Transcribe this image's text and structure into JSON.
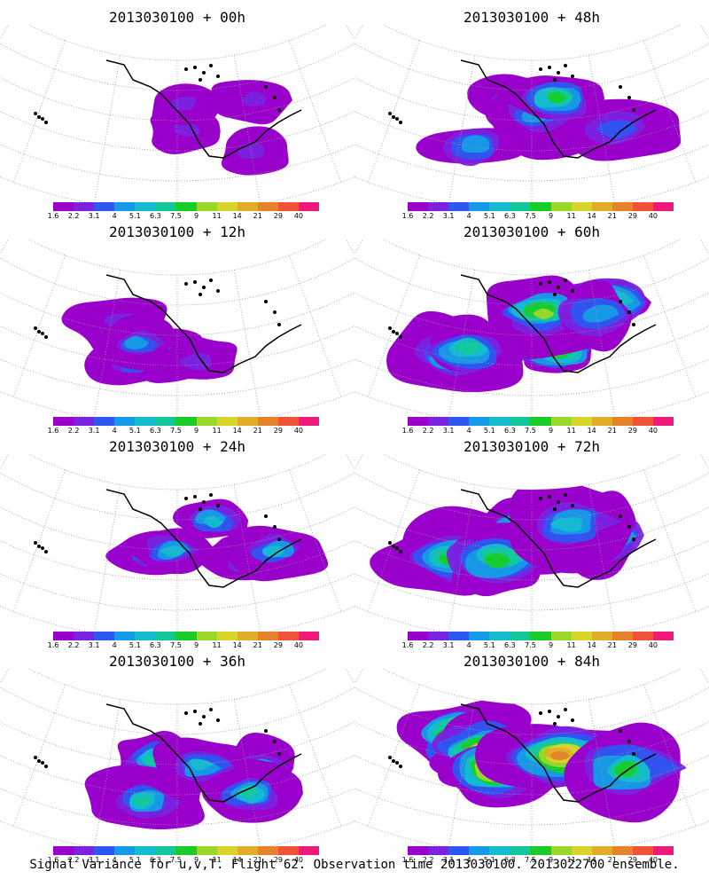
{
  "colors": {
    "levels": [
      "#9a00cc",
      "#7a22e0",
      "#2e56f0",
      "#169ce6",
      "#14bcd0",
      "#12c89a",
      "#18cc2a",
      "#9ad82a",
      "#d8d42a",
      "#e0ac2a",
      "#e6822a",
      "#f0523a",
      "#f0187a"
    ],
    "coast": "#000000",
    "grid": "#999999"
  },
  "legend_labels": [
    "1.6",
    "2.2",
    "3.1",
    "4",
    "5.1",
    "6.3",
    "7.5",
    "9",
    "11",
    "14",
    "21",
    "29",
    "40"
  ],
  "caption": "Signal Variance for u,v,T. Flight 62. Observation time 2013030100. 2013022700 ensemble.",
  "panels": [
    {
      "title": "2013030100 + 00h",
      "lead_hours": 0,
      "intensity": 0.1
    },
    {
      "title": "2013030100 + 48h",
      "lead_hours": 48,
      "intensity": 0.55
    },
    {
      "title": "2013030100 + 12h",
      "lead_hours": 12,
      "intensity": 0.25
    },
    {
      "title": "2013030100 + 60h",
      "lead_hours": 60,
      "intensity": 0.7
    },
    {
      "title": "2013030100 + 24h",
      "lead_hours": 24,
      "intensity": 0.35
    },
    {
      "title": "2013030100 + 72h",
      "lead_hours": 72,
      "intensity": 0.8
    },
    {
      "title": "2013030100 + 36h",
      "lead_hours": 36,
      "intensity": 0.45
    },
    {
      "title": "2013030100 + 84h",
      "lead_hours": 84,
      "intensity": 0.9
    }
  ]
}
